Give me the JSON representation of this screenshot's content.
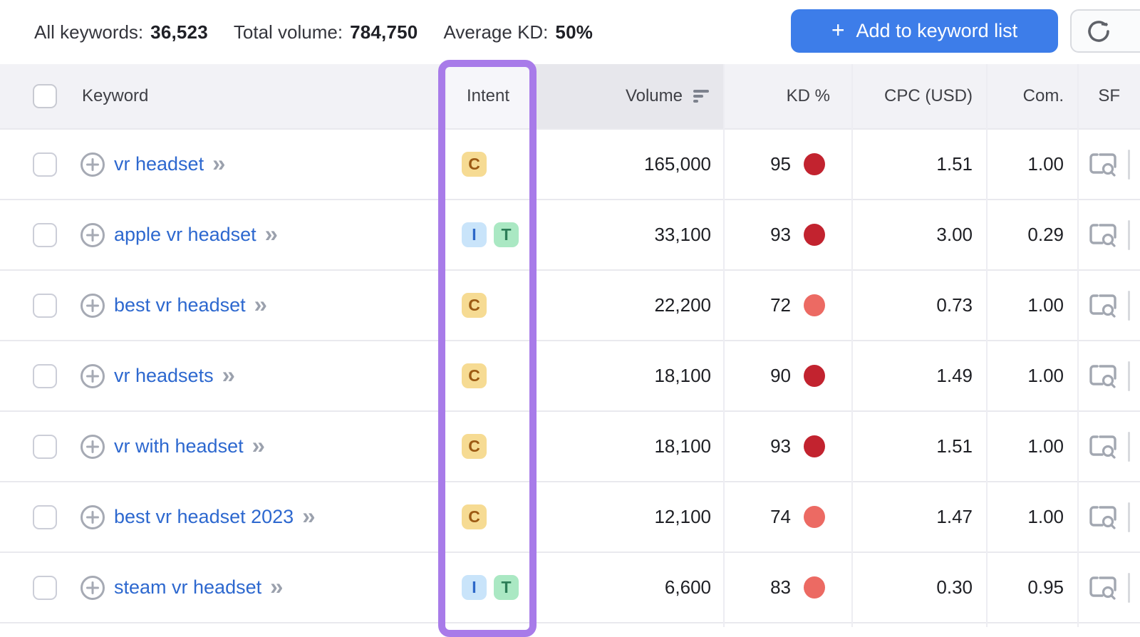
{
  "toolbar": {
    "stats": [
      {
        "label": "All keywords:",
        "value": "36,523"
      },
      {
        "label": "Total volume:",
        "value": "784,750"
      },
      {
        "label": "Average KD:",
        "value": "50%"
      }
    ],
    "add_button": {
      "plus": "+",
      "label": "Add to keyword list"
    },
    "refresh_icon": "refresh-icon"
  },
  "table": {
    "header": {
      "keyword": "Keyword",
      "intent": "Intent",
      "volume": "Volume",
      "kd": "KD %",
      "cpc": "CPC (USD)",
      "com": "Com.",
      "sf": "SF"
    },
    "sort": {
      "column": "Volume",
      "direction": "desc"
    },
    "rows": [
      {
        "keyword": "vr headset",
        "intents": [
          "C"
        ],
        "volume": "165,000",
        "kd": "95",
        "kd_level": "very-hard",
        "cpc": "1.51",
        "com": "1.00",
        "sf_icon": "serp-preview-icon"
      },
      {
        "keyword": "apple vr headset",
        "intents": [
          "I",
          "T"
        ],
        "volume": "33,100",
        "kd": "93",
        "kd_level": "very-hard",
        "cpc": "3.00",
        "com": "0.29",
        "sf_icon": "serp-preview-icon"
      },
      {
        "keyword": "best vr headset",
        "intents": [
          "C"
        ],
        "volume": "22,200",
        "kd": "72",
        "kd_level": "hard",
        "cpc": "0.73",
        "com": "1.00",
        "sf_icon": "serp-preview-icon"
      },
      {
        "keyword": "vr headsets",
        "intents": [
          "C"
        ],
        "volume": "18,100",
        "kd": "90",
        "kd_level": "very-hard",
        "cpc": "1.49",
        "com": "1.00",
        "sf_icon": "serp-preview-icon"
      },
      {
        "keyword": "vr with headset",
        "intents": [
          "C"
        ],
        "volume": "18,100",
        "kd": "93",
        "kd_level": "very-hard",
        "cpc": "1.51",
        "com": "1.00",
        "sf_icon": "serp-preview-icon"
      },
      {
        "keyword": "best vr headset 2023",
        "intents": [
          "C"
        ],
        "volume": "12,100",
        "kd": "74",
        "kd_level": "hard",
        "cpc": "1.47",
        "com": "1.00",
        "sf_icon": "serp-preview-icon"
      },
      {
        "keyword": "steam vr headset",
        "intents": [
          "I",
          "T"
        ],
        "volume": "6,600",
        "kd": "83",
        "kd_level": "hard",
        "cpc": "0.30",
        "com": "0.95",
        "sf_icon": "serp-preview-icon"
      }
    ]
  },
  "highlight": {
    "column": "Intent",
    "color": "#a87be9"
  },
  "colors": {
    "accent_blue": "#3d7de9",
    "link_blue": "#2d68cf",
    "kd_very_hard": "#c2232f",
    "kd_hard": "#ec6a63",
    "intent_commercial_bg": "#f6db93",
    "intent_commercial_text": "#9c5a14",
    "intent_informational_bg": "#c9e4fa",
    "intent_informational_text": "#2d68c8",
    "intent_transactional_bg": "#aae8c3",
    "intent_transactional_text": "#2c7d57"
  }
}
